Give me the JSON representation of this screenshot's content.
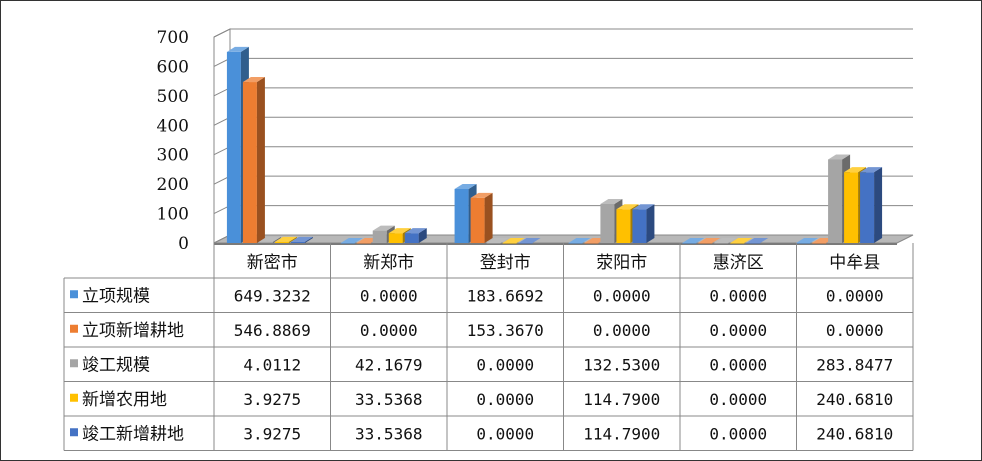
{
  "chart_data": {
    "type": "bar",
    "title": "",
    "xlabel": "",
    "ylabel": "",
    "ylim": [
      0,
      700
    ],
    "yticks": [
      "0",
      "100",
      "200",
      "300",
      "400",
      "500",
      "600",
      "700"
    ],
    "grid": true,
    "legend": "data-table-left",
    "categories": [
      "新密市",
      "新郑市",
      "登封市",
      "荥阳市",
      "惠济区",
      "中牟县"
    ],
    "series": [
      {
        "name": "立项规模",
        "color": "#4a90d9",
        "values": [
          649.3232,
          0.0,
          183.6692,
          0.0,
          0.0,
          0.0
        ],
        "labels": [
          "649.3232",
          "0.0000",
          "183.6692",
          "0.0000",
          "0.0000",
          "0.0000"
        ]
      },
      {
        "name": "立项新增耕地",
        "color": "#ed7d31",
        "values": [
          546.8869,
          0.0,
          153.367,
          0.0,
          0.0,
          0.0
        ],
        "labels": [
          "546.8869",
          "0.0000",
          "153.3670",
          "0.0000",
          "0.0000",
          "0.0000"
        ]
      },
      {
        "name": "竣工规模",
        "color": "#a5a5a5",
        "values": [
          4.0112,
          42.1679,
          0.0,
          132.53,
          0.0,
          283.8477
        ],
        "labels": [
          "4.0112",
          "42.1679",
          "0.0000",
          "132.5300",
          "0.0000",
          "283.8477"
        ]
      },
      {
        "name": "新增农用地",
        "color": "#ffc000",
        "values": [
          3.9275,
          33.5368,
          0.0,
          114.79,
          0.0,
          240.681
        ],
        "labels": [
          "3.9275",
          "33.5368",
          "0.0000",
          "114.7900",
          "0.0000",
          "240.6810"
        ]
      },
      {
        "name": "竣工新增耕地",
        "color": "#4472c4",
        "values": [
          3.9275,
          33.5368,
          0.0,
          114.79,
          0.0,
          240.681
        ],
        "labels": [
          "3.9275",
          "33.5368",
          "0.0000",
          "114.7900",
          "0.0000",
          "240.6810"
        ]
      }
    ]
  }
}
